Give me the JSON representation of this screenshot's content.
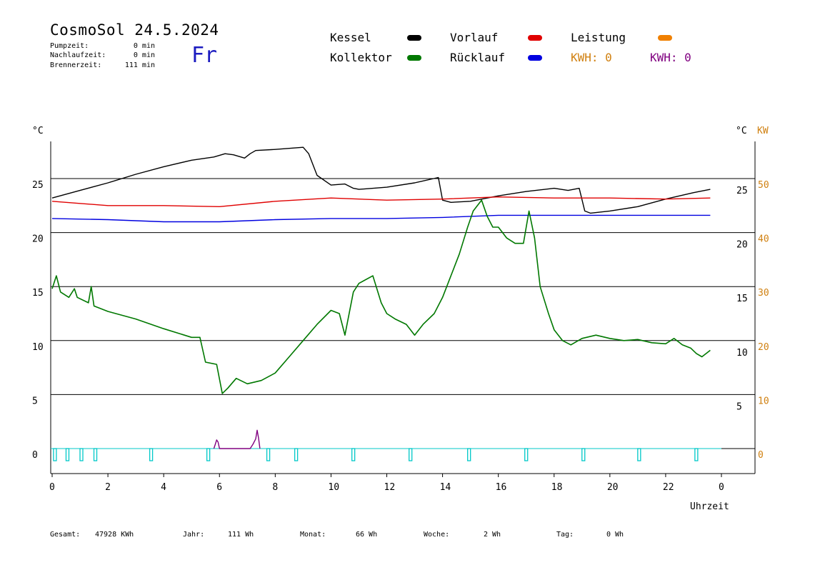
{
  "header": {
    "title": "CosmoSol 24.5.2024",
    "day": "Fr",
    "info": [
      {
        "label": "Pumpzeit:",
        "value": "0 min"
      },
      {
        "label": "Nachlaufzeit:",
        "value": "0 min"
      },
      {
        "label": "Brennerzeit:",
        "value": "111 min"
      }
    ]
  },
  "legend": {
    "kessel": {
      "label": "Kessel",
      "color": "#000000"
    },
    "vorlauf": {
      "label": "Vorlauf",
      "color": "#e00000"
    },
    "leistung": {
      "label": "Leistung",
      "color": "#f08000"
    },
    "kollektor": {
      "label": "Kollektor",
      "color": "#007800"
    },
    "ruecklauf": {
      "label": "Rücklauf",
      "color": "#0000e0"
    },
    "kwh_orange": {
      "text": "KWH: 0",
      "color": "#d08010"
    },
    "kwh_purple": {
      "text": "KWH: 0",
      "color": "#800080"
    }
  },
  "axes": {
    "left_unit": "°C",
    "right_unit": "°C",
    "right_unit2": "KW",
    "xlabel": "Uhrzeit"
  },
  "footer": [
    {
      "label": "Gesamt:",
      "value": "47928 KWh"
    },
    {
      "label": "Jahr:",
      "value": "111 Wh"
    },
    {
      "label": "Monat:",
      "value": "66 Wh"
    },
    {
      "label": "Woche:",
      "value": "2 Wh"
    },
    {
      "label": "Tag:",
      "value": "0 Wh"
    }
  ],
  "chart_data": {
    "type": "line",
    "xlim": [
      0,
      24
    ],
    "ylim": [
      -2,
      31
    ],
    "y2lim": [
      -4,
      62
    ],
    "x_ticks": [
      "0",
      "2",
      "4",
      "6",
      "8",
      "10",
      "12",
      "14",
      "16",
      "18",
      "20",
      "22",
      "0"
    ],
    "y_ticks_left": [
      0,
      5,
      10,
      15,
      20,
      25
    ],
    "y_ticks_right": [
      5,
      10,
      15,
      20,
      25
    ],
    "y_ticks_kw": [
      0,
      10,
      20,
      30,
      40,
      50
    ],
    "series": [
      {
        "name": "Kessel",
        "color": "#000000",
        "x": [
          0,
          1,
          2,
          3,
          4,
          5,
          5.8,
          6.2,
          6.5,
          6.9,
          7.1,
          7.3,
          8,
          9,
          9.2,
          9.5,
          10,
          10.5,
          10.8,
          11,
          12,
          13,
          13.85,
          14.0,
          14.3,
          15,
          16,
          17,
          18,
          18.5,
          18.9,
          19.1,
          19.3,
          20,
          21,
          22,
          23,
          23.6
        ],
        "y": [
          23.2,
          23.9,
          24.6,
          25.4,
          26.1,
          26.7,
          27.0,
          27.3,
          27.2,
          26.9,
          27.3,
          27.6,
          27.7,
          27.9,
          27.3,
          25.3,
          24.4,
          24.5,
          24.1,
          24.0,
          24.2,
          24.6,
          25.1,
          23.0,
          22.8,
          22.9,
          23.4,
          23.8,
          24.1,
          23.9,
          24.1,
          22.0,
          21.8,
          22.0,
          22.4,
          23.1,
          23.7,
          24.0
        ]
      },
      {
        "name": "Vorlauf",
        "color": "#e00000",
        "x": [
          0,
          2,
          4,
          6,
          8,
          10,
          12,
          14,
          16,
          18,
          20,
          22,
          23.6
        ],
        "y": [
          22.9,
          22.5,
          22.5,
          22.4,
          22.9,
          23.2,
          23.0,
          23.1,
          23.3,
          23.2,
          23.2,
          23.1,
          23.2
        ]
      },
      {
        "name": "Rücklauf",
        "color": "#0000e0",
        "x": [
          0,
          2,
          4,
          6,
          8,
          10,
          12,
          14,
          16,
          18,
          20,
          22,
          23.6
        ],
        "y": [
          21.3,
          21.2,
          21.0,
          21.0,
          21.2,
          21.3,
          21.3,
          21.4,
          21.6,
          21.6,
          21.6,
          21.6,
          21.6
        ]
      },
      {
        "name": "Kollektor",
        "color": "#007800",
        "x": [
          0,
          0.15,
          0.3,
          0.6,
          0.8,
          0.9,
          1.3,
          1.4,
          1.5,
          2,
          3,
          4,
          5,
          5.3,
          5.5,
          5.9,
          6.1,
          6.3,
          6.6,
          7,
          7.5,
          8,
          8.5,
          9,
          9.5,
          10,
          10.3,
          10.5,
          10.8,
          11,
          11.5,
          11.8,
          12,
          12.3,
          12.7,
          13,
          13.3,
          13.7,
          14,
          14.3,
          14.6,
          14.9,
          15.1,
          15.4,
          15.6,
          15.8,
          16,
          16.3,
          16.6,
          16.9,
          17.1,
          17.3,
          17.5,
          17.8,
          18,
          18.3,
          18.6,
          19,
          19.5,
          20,
          20.5,
          21,
          21.5,
          22,
          22.3,
          22.6,
          22.9,
          23.1,
          23.3,
          23.6
        ],
        "y": [
          14.8,
          16.0,
          14.5,
          14.0,
          14.8,
          14.0,
          13.5,
          15.0,
          13.2,
          12.7,
          12.0,
          11.1,
          10.3,
          10.3,
          8.0,
          7.8,
          5.1,
          5.6,
          6.5,
          6.0,
          6.3,
          7.0,
          8.5,
          10.0,
          11.5,
          12.8,
          12.5,
          10.5,
          14.5,
          15.3,
          16.0,
          13.5,
          12.5,
          12.0,
          11.5,
          10.5,
          11.5,
          12.5,
          14.0,
          16.0,
          18.0,
          20.5,
          22.0,
          23.0,
          21.5,
          20.5,
          20.5,
          19.5,
          19.0,
          19.0,
          22.0,
          19.5,
          15.0,
          12.5,
          11.0,
          10.0,
          9.6,
          10.2,
          10.5,
          10.2,
          10.0,
          10.1,
          9.8,
          9.7,
          10.2,
          9.6,
          9.3,
          8.8,
          8.5,
          9.1
        ]
      },
      {
        "name": "KWH",
        "color": "#800080",
        "x": [
          5.8,
          5.85,
          5.9,
          5.95,
          6.0,
          7.1,
          7.2,
          7.3,
          7.35,
          7.4,
          7.45
        ],
        "y": [
          0,
          0.4,
          0.8,
          0.6,
          0,
          0,
          0.4,
          0.9,
          1.7,
          1.0,
          0
        ]
      },
      {
        "name": "Leistung",
        "color": "#00c8c8",
        "pulses": [
          0.1,
          0.55,
          1.05,
          1.55,
          3.55,
          5.6,
          7.75,
          8.75,
          10.8,
          12.85,
          14.95,
          17.0,
          19.05,
          21.05,
          23.1
        ]
      }
    ]
  }
}
